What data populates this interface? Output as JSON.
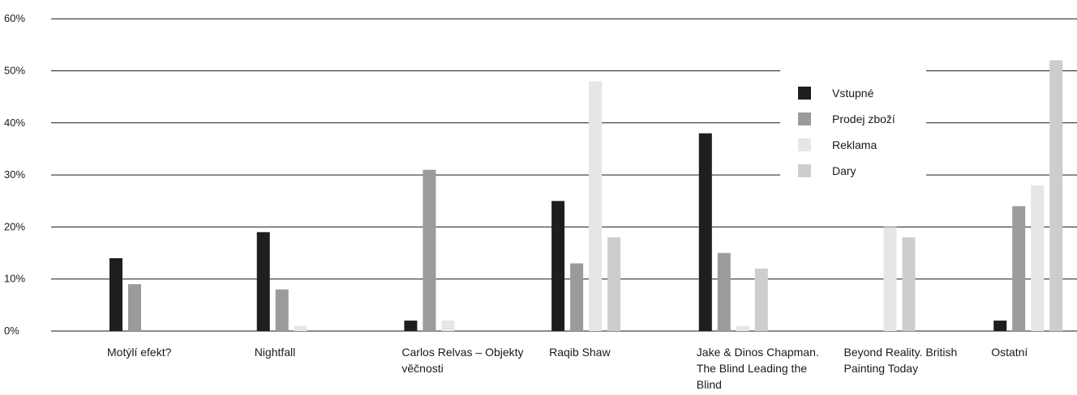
{
  "chart_data": {
    "type": "bar",
    "categories": [
      "Motýlí efekt?",
      "Nightfall",
      "Carlos Relvas – Objekty věčnosti",
      "Raqib Shaw",
      "Jake & Dinos Chapman. The Blind Leading the Blind",
      "Beyond Reality. British Painting Today",
      "Ostatní"
    ],
    "series": [
      {
        "name": "Vstupné",
        "color": "#1e1e1e",
        "values": [
          14,
          19,
          2,
          25,
          38,
          0,
          2
        ]
      },
      {
        "name": "Prodej zboží",
        "color": "#9b9b9b",
        "values": [
          9,
          8,
          31,
          13,
          15,
          0,
          24
        ]
      },
      {
        "name": "Reklama",
        "color": "#e6e6e6",
        "values": [
          0,
          1,
          2,
          48,
          1,
          20,
          28
        ]
      },
      {
        "name": "Dary",
        "color": "#cdcdcd",
        "values": [
          0,
          0,
          0,
          18,
          12,
          18,
          52
        ]
      }
    ],
    "yticks": [
      "0%",
      "10%",
      "20%",
      "30%",
      "40%",
      "50%",
      "60%"
    ],
    "ylim": [
      0,
      60
    ],
    "grid": true,
    "legend_position": "top-right"
  }
}
